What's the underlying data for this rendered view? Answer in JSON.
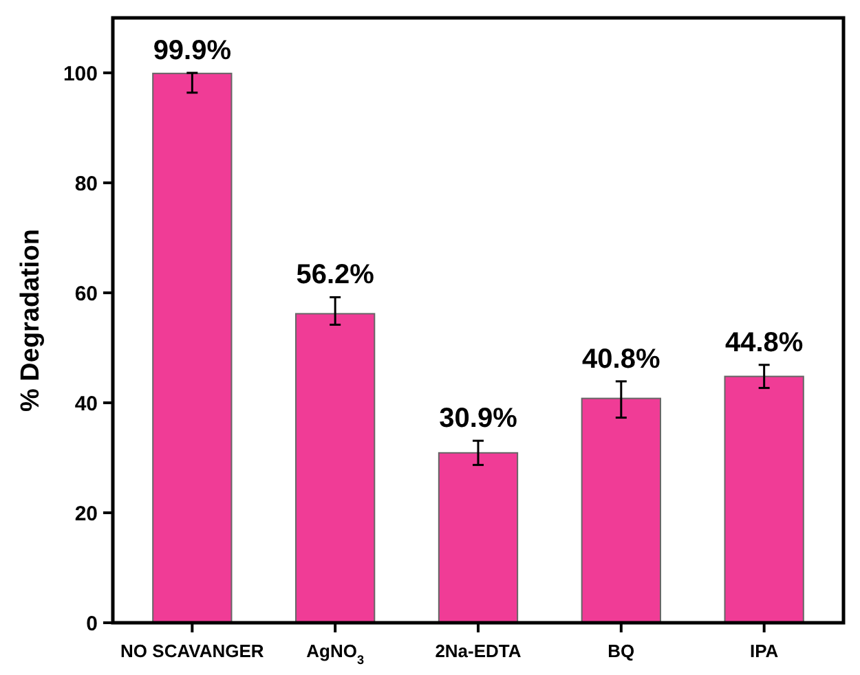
{
  "chart_data": {
    "type": "bar",
    "ylabel": "% Degradation",
    "categories": [
      "NO SCAVANGER",
      "AgNO$_{3}$",
      "2Na-EDTA",
      "BQ",
      "IPA"
    ],
    "values": [
      99.9,
      56.2,
      30.9,
      40.8,
      44.8
    ],
    "errors": [
      [
        96.4,
        100.0
      ],
      [
        54.2,
        59.2
      ],
      [
        28.7,
        33.1
      ],
      [
        37.3,
        43.9
      ],
      [
        42.7,
        46.9
      ]
    ],
    "value_labels": [
      "99.9%",
      "56.2%",
      "30.9%",
      "40.8%",
      "44.8%"
    ],
    "color": "#f03c96",
    "ylim": [
      0,
      110
    ],
    "yticks": [
      0,
      20,
      40,
      60,
      80,
      100
    ],
    "grid": false
  }
}
